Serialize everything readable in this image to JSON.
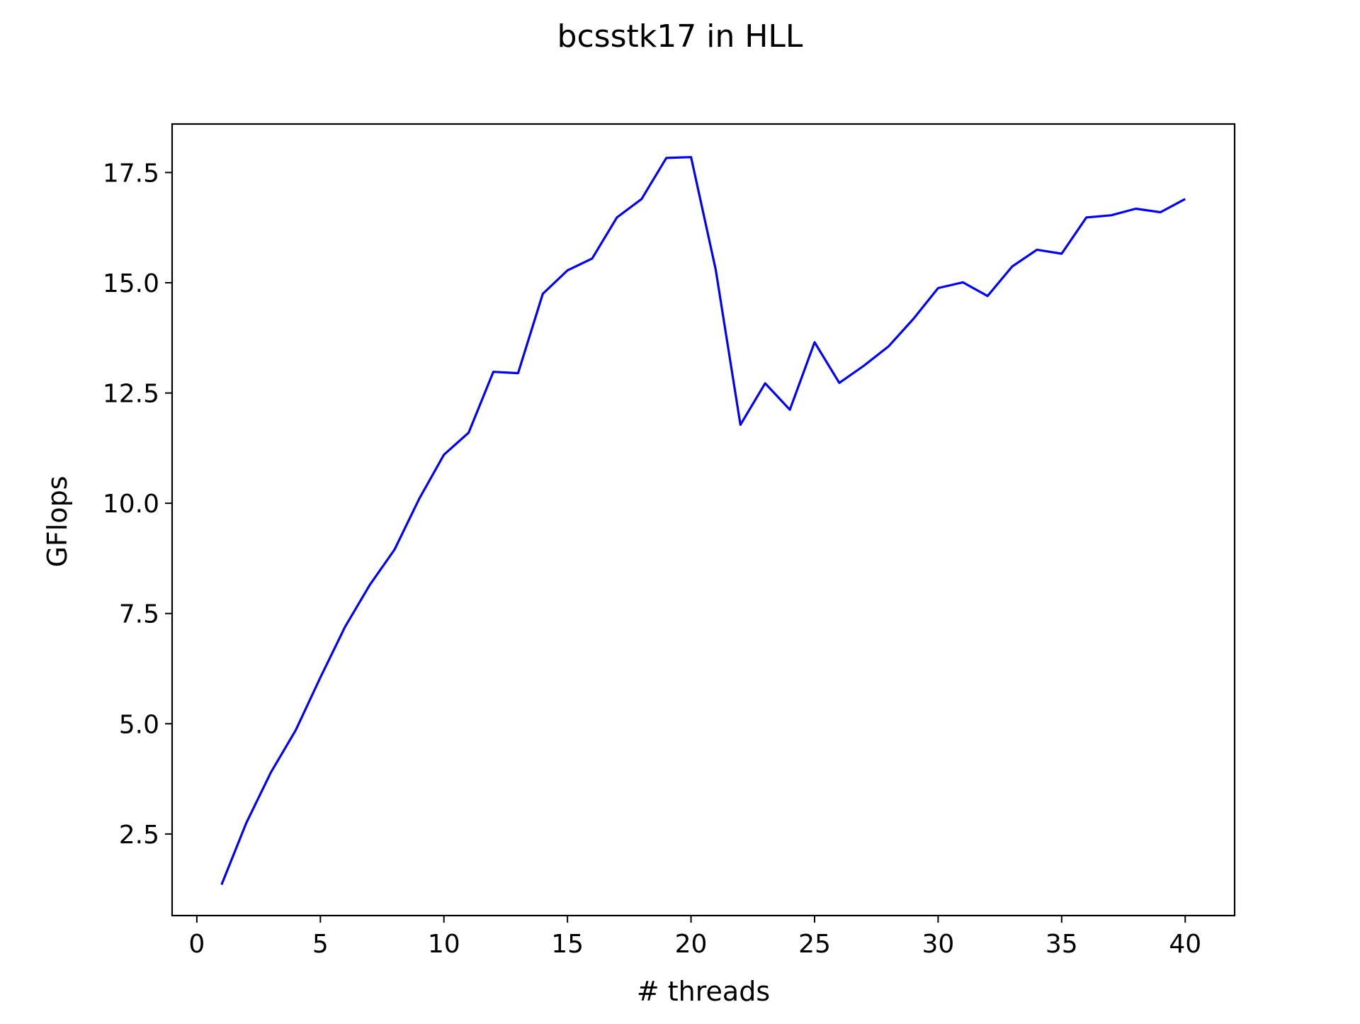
{
  "chart_data": {
    "type": "line",
    "title": "bcsstk17 in HLL",
    "xlabel": "# threads",
    "ylabel": "GFlops",
    "xlim": [
      -1,
      42
    ],
    "ylim": [
      0.65,
      18.6
    ],
    "xticks": [
      0,
      5,
      10,
      15,
      20,
      25,
      30,
      35,
      40
    ],
    "xtick_labels": [
      "0",
      "5",
      "10",
      "15",
      "20",
      "25",
      "30",
      "35",
      "40"
    ],
    "yticks": [
      2.5,
      5.0,
      7.5,
      10.0,
      12.5,
      15.0,
      17.5
    ],
    "ytick_labels": [
      "2.5",
      "5.0",
      "7.5",
      "10.0",
      "12.5",
      "15.0",
      "17.5"
    ],
    "grid": false,
    "series": [
      {
        "color": "#0000ff",
        "x": [
          1,
          2,
          3,
          4,
          5,
          6,
          7,
          8,
          9,
          10,
          11,
          12,
          13,
          14,
          15,
          16,
          17,
          18,
          19,
          20,
          21,
          22,
          23,
          24,
          25,
          26,
          27,
          28,
          29,
          30,
          31,
          32,
          33,
          34,
          35,
          36,
          37,
          38,
          39,
          40
        ],
        "y": [
          1.35,
          2.75,
          3.9,
          4.85,
          6.05,
          7.2,
          8.15,
          8.95,
          10.1,
          11.1,
          11.6,
          12.98,
          12.95,
          14.75,
          15.28,
          15.55,
          16.48,
          16.9,
          17.83,
          17.85,
          15.3,
          11.78,
          12.72,
          12.12,
          13.65,
          12.73,
          13.12,
          13.56,
          14.18,
          14.88,
          15.01,
          14.7,
          15.37,
          15.75,
          15.66,
          16.48,
          16.53,
          16.68,
          16.6,
          16.9
        ]
      }
    ]
  }
}
